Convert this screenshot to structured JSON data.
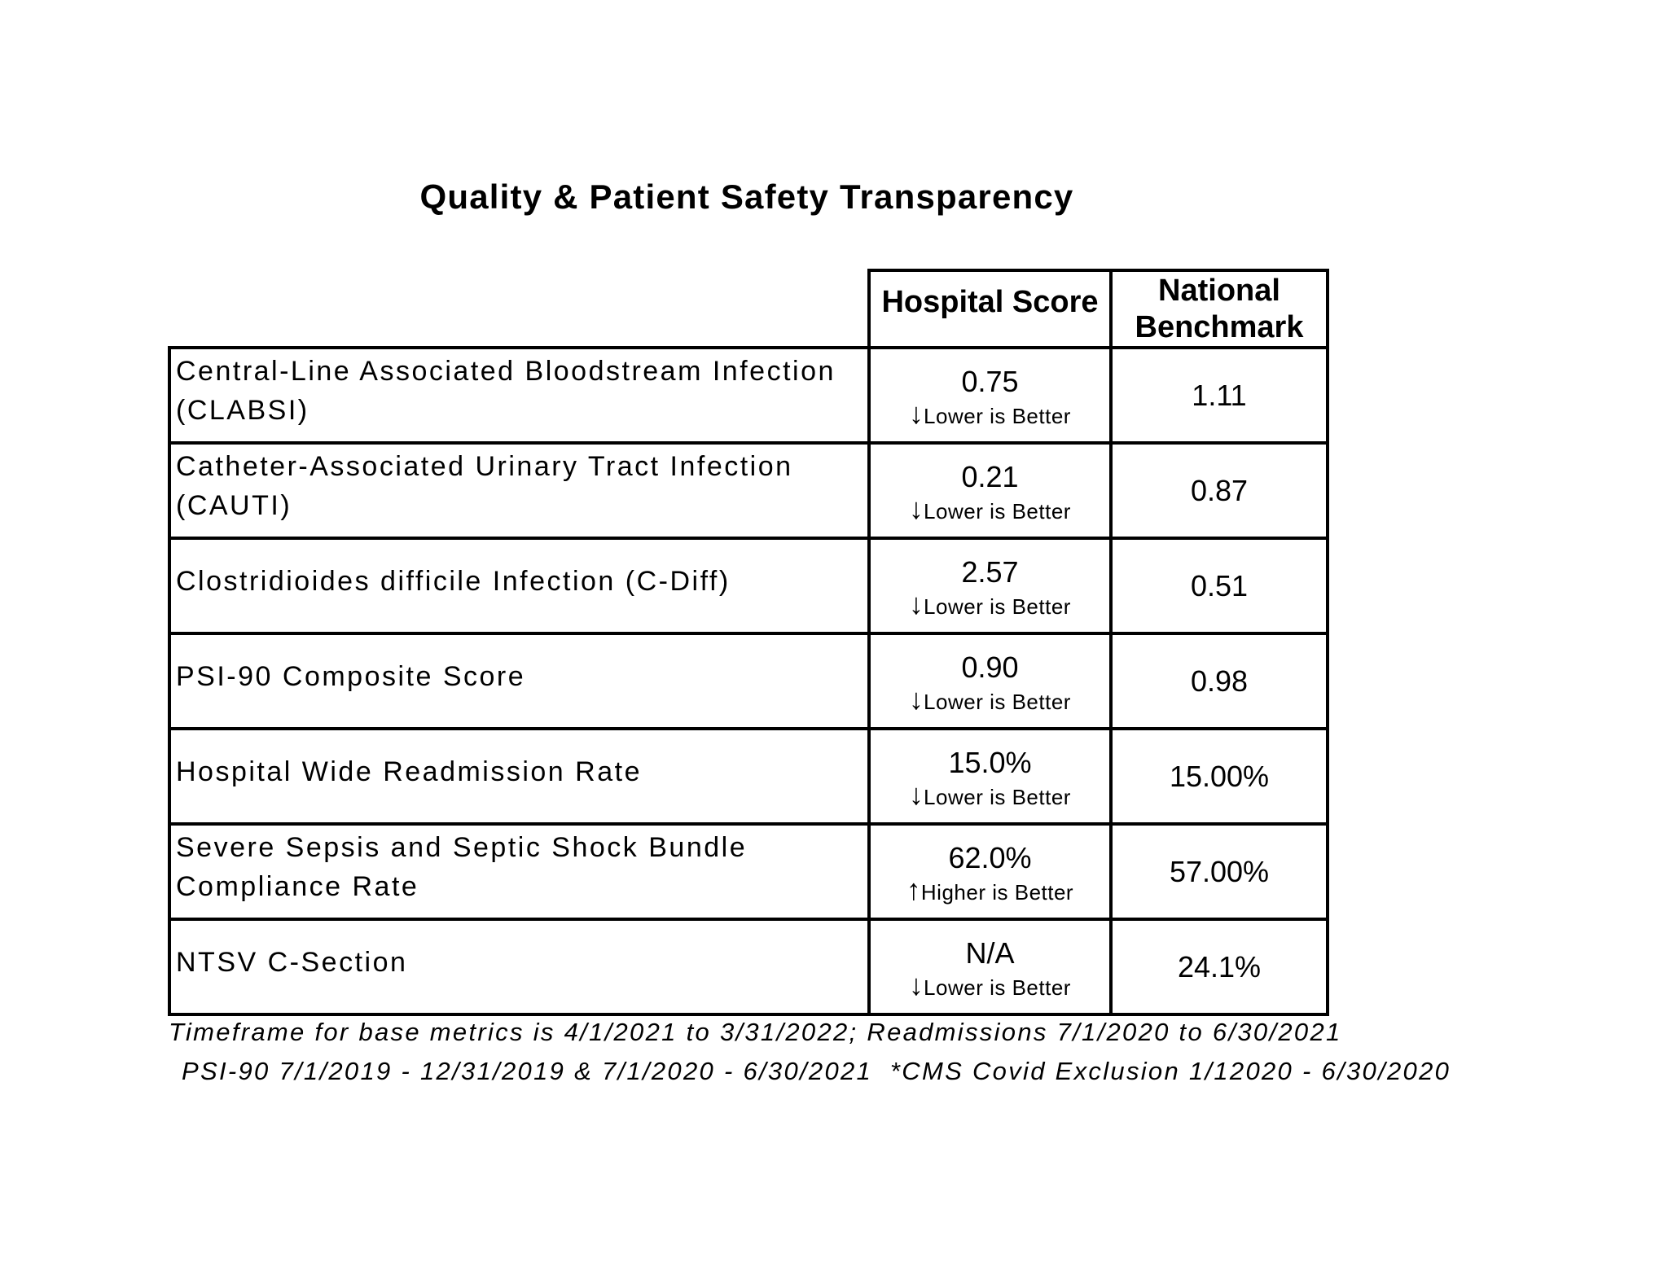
{
  "title": "Quality & Patient Safety Transparency",
  "table": {
    "columns": [
      "",
      "Hospital Score",
      "National Benchmark"
    ],
    "rows": [
      {
        "metric": "Central-Line Associated Bloodstream Infection (CLABSI)",
        "arrow": "↓",
        "direction": "Lower is Better",
        "score": "0.75",
        "benchmark": "1.11"
      },
      {
        "metric": "Catheter-Associated Urinary Tract Infection (CAUTI)",
        "arrow": "↓",
        "direction": "Lower is Better",
        "score": "0.21",
        "benchmark": "0.87"
      },
      {
        "metric": "Clostridioides difficile Infection (C-Diff)",
        "arrow": "↓",
        "direction": "Lower is Better",
        "score": "2.57",
        "benchmark": "0.51"
      },
      {
        "metric": "PSI-90 Composite Score",
        "arrow": "↓",
        "direction": "Lower is Better",
        "score": "0.90",
        "benchmark": "0.98"
      },
      {
        "metric": "Hospital Wide Readmission Rate",
        "arrow": "↓",
        "direction": "Lower is Better",
        "score": "15.0%",
        "benchmark": "15.00%"
      },
      {
        "metric": "Severe Sepsis and Septic Shock Bundle Compliance Rate",
        "arrow": "↑",
        "direction": "Higher is Better",
        "score": "62.0%",
        "benchmark": "57.00%"
      },
      {
        "metric": "NTSV C-Section",
        "arrow": "↓",
        "direction": "Lower is Better",
        "score": "N/A",
        "benchmark": "24.1%"
      }
    ]
  },
  "footnotes": [
    "Timeframe for base metrics is 4/1/2021 to 3/31/2022; Readmissions 7/1/2020 to 6/30/2021",
    "PSI-90 7/1/2019 - 12/31/2019 & 7/1/2020 - 6/30/2021  *CMS Covid Exclusion 1/12020 - 6/30/2020"
  ]
}
